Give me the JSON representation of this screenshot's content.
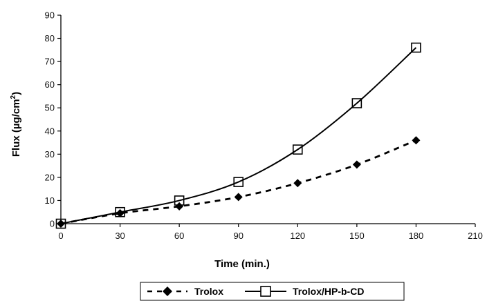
{
  "chart_data": {
    "type": "line",
    "xlabel": "Time (min.)",
    "ylabel_main": "Flux (µg/cm",
    "ylabel_sup": "2",
    "ylabel_end": ")",
    "xlim": [
      0,
      210
    ],
    "ylim": [
      0,
      90
    ],
    "x_ticks": [
      0,
      30,
      60,
      90,
      120,
      150,
      180,
      210
    ],
    "y_ticks": [
      0,
      10,
      20,
      30,
      40,
      50,
      60,
      70,
      80,
      90
    ],
    "grid": false,
    "legend_position": "bottom",
    "x": [
      0,
      30,
      60,
      90,
      120,
      150,
      180
    ],
    "series": [
      {
        "name": "Trolox",
        "values": [
          0,
          4.5,
          7.5,
          11.5,
          17.5,
          25.5,
          36
        ],
        "marker": "diamond-filled",
        "line_style": "dashed",
        "color": "#000000"
      },
      {
        "name": "Trolox/HP-b-CD",
        "values": [
          0,
          5,
          10,
          18,
          32,
          52,
          76
        ],
        "marker": "square-open",
        "line_style": "solid",
        "color": "#000000"
      }
    ]
  }
}
